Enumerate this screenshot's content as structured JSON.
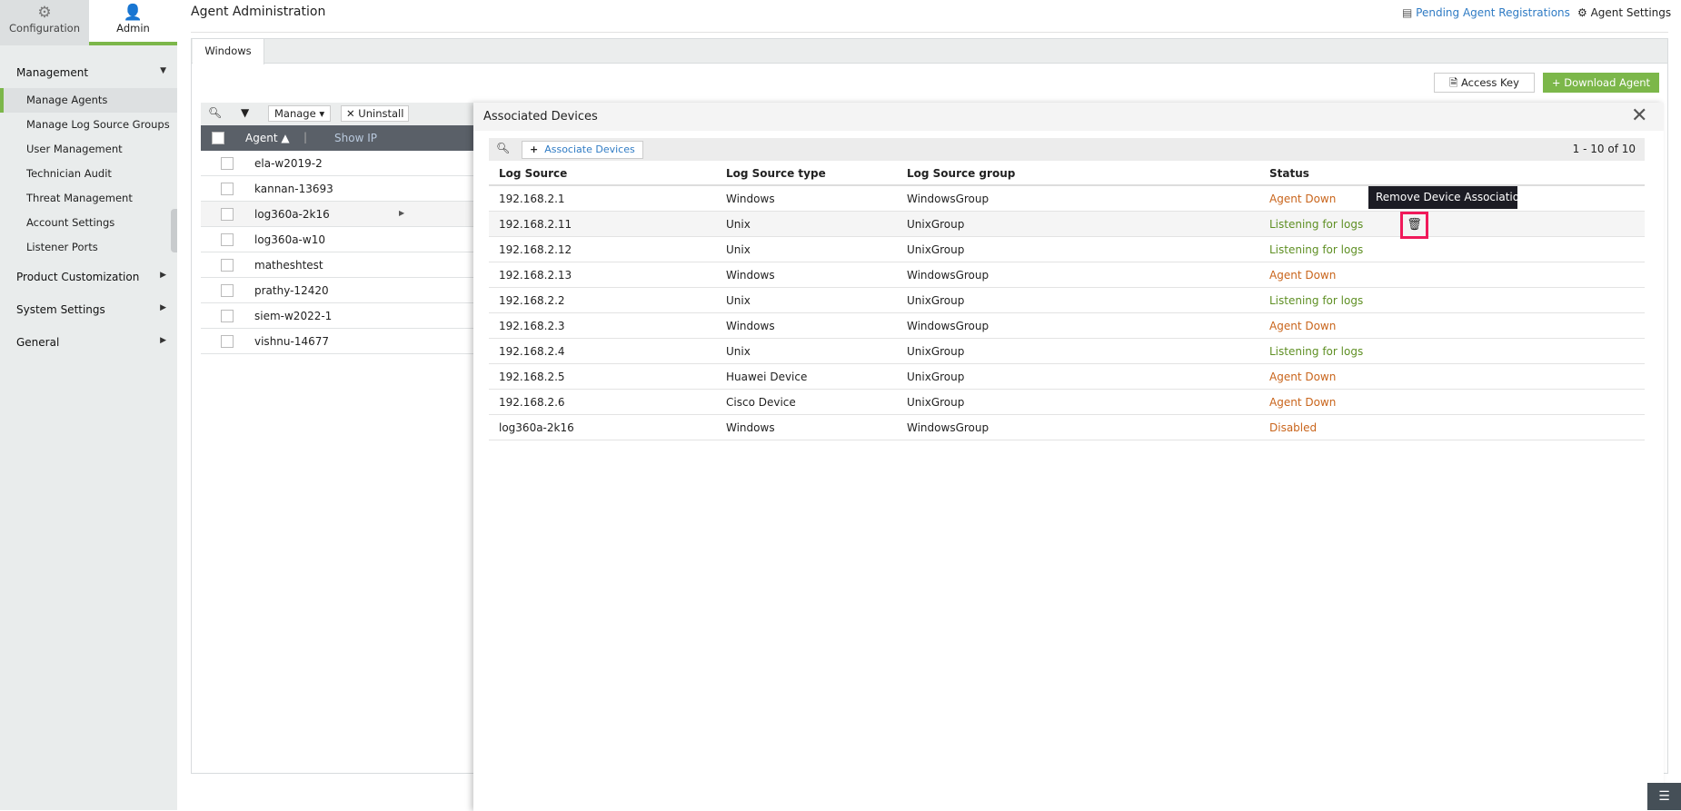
{
  "sidebar": {
    "tabs": [
      {
        "label": "Configuration",
        "icon": "gear-icon"
      },
      {
        "label": "Admin",
        "icon": "user-icon"
      }
    ],
    "management": "Management",
    "items": [
      "Manage Agents",
      "Manage Log Source Groups",
      "User Management",
      "Technician Audit",
      "Threat Management",
      "Account Settings",
      "Listener Ports"
    ],
    "groups": [
      "Product Customization",
      "System Settings",
      "General"
    ]
  },
  "header": {
    "title": "Agent Administration",
    "pending": "Pending Agent Registrations",
    "settings": "Agent Settings"
  },
  "tabs": [
    "Windows"
  ],
  "actions": {
    "access_key": "Access Key",
    "download": "+ Download Agent"
  },
  "agents": {
    "manage": "Manage",
    "uninstall": "Uninstall",
    "col_agent": "Agent",
    "show_ip": "Show IP",
    "rows": [
      "ela-w2019-2",
      "kannan-13693",
      "log360a-2k16",
      "log360a-w10",
      "matheshtest",
      "prathy-12420",
      "siem-w2022-1",
      "vishnu-14677"
    ]
  },
  "panel": {
    "title": "Associated Devices",
    "associate": "Associate Devices",
    "paging": "1 - 10 of 10",
    "columns": [
      "Log Source",
      "Log Source type",
      "Log Source group",
      "Status"
    ],
    "rows": [
      [
        "192.168.2.1",
        "Windows",
        "WindowsGroup",
        "Agent Down"
      ],
      [
        "192.168.2.11",
        "Unix",
        "UnixGroup",
        "Listening for logs"
      ],
      [
        "192.168.2.12",
        "Unix",
        "UnixGroup",
        "Listening for logs"
      ],
      [
        "192.168.2.13",
        "Windows",
        "WindowsGroup",
        "Agent Down"
      ],
      [
        "192.168.2.2",
        "Unix",
        "UnixGroup",
        "Listening for logs"
      ],
      [
        "192.168.2.3",
        "Windows",
        "WindowsGroup",
        "Agent Down"
      ],
      [
        "192.168.2.4",
        "Unix",
        "UnixGroup",
        "Listening for logs"
      ],
      [
        "192.168.2.5",
        "Huawei Device",
        "UnixGroup",
        "Agent Down"
      ],
      [
        "192.168.2.6",
        "Cisco Device",
        "UnixGroup",
        "Agent Down"
      ],
      [
        "log360a-2k16",
        "Windows",
        "WindowsGroup",
        "Disabled"
      ]
    ],
    "tooltip": "Remove Device Association"
  },
  "colors": {
    "accent": "#7cb74a",
    "agent_down": "#c9651c",
    "listening": "#5e8f23",
    "link": "#2f7bc4",
    "highlight": "#f0195a"
  }
}
